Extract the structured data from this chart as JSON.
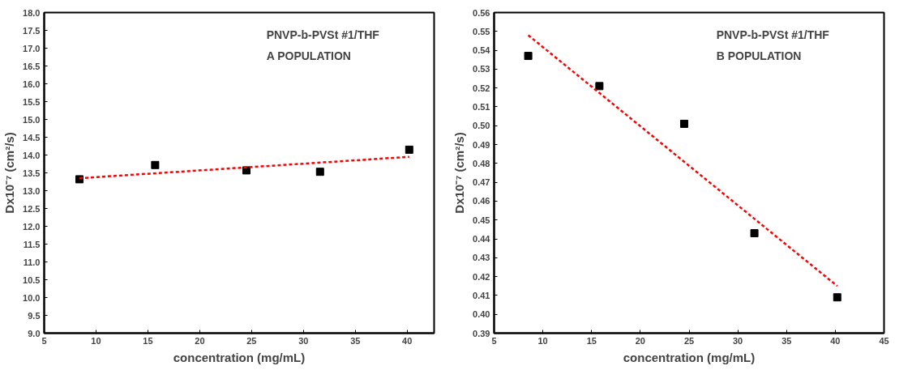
{
  "chart_data": [
    {
      "type": "scatter",
      "xlabel": "concentration (mg/mL)",
      "ylabel": "Dx10⁻⁷ (cm²/s)",
      "annotations": [
        "PNVP-b-PVSt #1/THF",
        "A POPULATION"
      ],
      "xlim": [
        5,
        42.6
      ],
      "xticks": [
        5,
        10,
        15,
        20,
        25,
        30,
        35,
        40
      ],
      "ylim": [
        9,
        18
      ],
      "yticks": [
        {
          "value": 9,
          "label": "9.0"
        },
        9.5,
        {
          "value": 10,
          "label": "10.0"
        },
        10.5,
        {
          "value": 11,
          "label": "11.0"
        },
        11.5,
        {
          "value": 12,
          "label": "12.0"
        },
        12.5,
        {
          "value": 13,
          "label": "13.0"
        },
        13.5,
        {
          "value": 14,
          "label": "14.0"
        },
        14.5,
        {
          "value": 15,
          "label": "15.0"
        },
        15.5,
        {
          "value": 16,
          "label": "16.0"
        },
        16.5,
        {
          "value": 17,
          "label": "17.0"
        },
        17.5,
        {
          "value": 18,
          "label": "18.0"
        }
      ],
      "grid": false,
      "series": [
        {
          "color": "#000000",
          "marker": "square",
          "x": [
            8.4,
            15.7,
            24.5,
            31.6,
            40.2
          ],
          "values": [
            13.32,
            13.72,
            13.57,
            13.53,
            14.15
          ]
        },
        {
          "type": "line",
          "color": "#ff0000",
          "line_style": "dashed",
          "x": [
            8.4,
            40.2
          ],
          "values": [
            13.35,
            13.95
          ]
        }
      ]
    },
    {
      "type": "scatter",
      "xlabel": "concentration (mg/mL)",
      "ylabel": "Dx10⁻⁷ (cm²/s)",
      "annotations": [
        "PNVP-b-PVSt #1/THF",
        "B POPULATION"
      ],
      "xlim": [
        5,
        45
      ],
      "xticks": [
        5,
        10,
        15,
        20,
        25,
        30,
        35,
        40,
        45
      ],
      "ylim": [
        0.39,
        0.56
      ],
      "yticks": [
        0.39,
        {
          "value": 0.4,
          "label": "0.40"
        },
        0.41,
        0.42,
        0.43,
        0.44,
        0.45,
        0.46,
        0.47,
        0.48,
        0.49,
        {
          "value": 0.5,
          "label": "0.50"
        },
        0.51,
        0.52,
        0.53,
        0.54,
        0.55,
        0.56
      ],
      "grid": false,
      "series": [
        {
          "color": "#000000",
          "marker": "square",
          "x": [
            8.5,
            15.8,
            24.5,
            31.7,
            40.2
          ],
          "values": [
            0.537,
            0.521,
            0.501,
            0.443,
            0.409
          ]
        },
        {
          "type": "line",
          "color": "#ff0000",
          "line_style": "dashed",
          "x": [
            8.5,
            40.2
          ],
          "values": [
            0.548,
            0.415
          ]
        }
      ]
    }
  ]
}
